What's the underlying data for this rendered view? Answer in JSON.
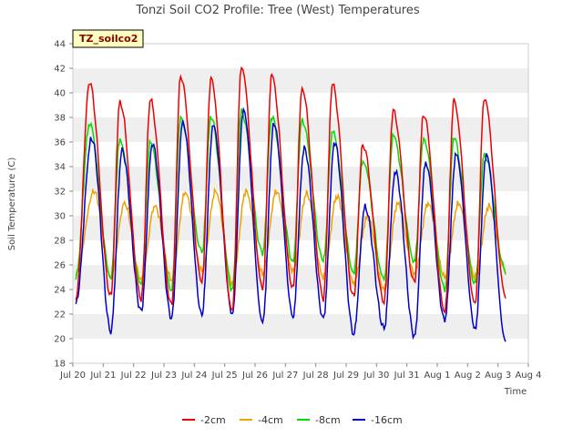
{
  "chart_data": {
    "type": "line",
    "title": "Tonzi Soil CO2 Profile: Tree (West) Temperatures",
    "xlabel": "Time",
    "ylabel": "Soil Temperature (C)",
    "tag": "TZ_soilco2",
    "ylim": [
      18,
      44
    ],
    "y_ticks": [
      18,
      20,
      22,
      24,
      26,
      28,
      30,
      32,
      34,
      36,
      38,
      40,
      42,
      44
    ],
    "x_ticks": [
      "Jul 20",
      "Jul 21",
      "Jul 22",
      "Jul 23",
      "Jul 24",
      "Jul 25",
      "Jul 26",
      "Jul 27",
      "Jul 28",
      "Jul 29",
      "Jul 30",
      "Jul 31",
      "Aug 1",
      "Aug 2",
      "Aug 3",
      "Aug 4"
    ],
    "x_range_days": [
      0,
      15
    ],
    "x_sampling": "daily peak and trough values, peaks near mid-day, troughs near early morning",
    "legend_position": "bottom-center",
    "grid": "horizontal bands",
    "series": [
      {
        "name": "-2cm",
        "color": "#ee0000",
        "start": 23.3,
        "daily_max": [
          40.8,
          39.3,
          39.4,
          41.4,
          41.1,
          42.2,
          41.4,
          40.4,
          40.7,
          35.8,
          38.5,
          38.3,
          39.3,
          39.6
        ],
        "daily_min": [
          23.5,
          23.2,
          22.8,
          24.6,
          22.3,
          24.1,
          24.1,
          23.3,
          23.4,
          23.0,
          24.6,
          22.2,
          22.8,
          23.5
        ]
      },
      {
        "name": "-4cm",
        "color": "#f0a000",
        "start": 25.3,
        "daily_max": [
          32.0,
          31.0,
          30.8,
          31.9,
          32.0,
          32.0,
          32.0,
          31.8,
          31.6,
          29.9,
          31.0,
          31.0,
          31.0,
          30.8
        ],
        "daily_min": [
          25.0,
          24.8,
          24.8,
          25.5,
          24.5,
          25.3,
          25.5,
          25.0,
          24.5,
          24.0,
          25.3,
          25.0,
          25.0,
          25.5
        ]
      },
      {
        "name": "-8cm",
        "color": "#00dd00",
        "start": 25.0,
        "daily_max": [
          37.5,
          36.2,
          36.0,
          38.0,
          38.0,
          38.5,
          38.0,
          37.8,
          36.8,
          34.5,
          36.5,
          36.3,
          36.3,
          35.0
        ],
        "daily_min": [
          25.0,
          24.3,
          24.0,
          27.0,
          24.0,
          26.9,
          26.3,
          26.3,
          25.4,
          24.8,
          26.3,
          24.0,
          24.5,
          25.5
        ]
      },
      {
        "name": "-16cm",
        "color": "#0000cc",
        "start": 22.9,
        "daily_max": [
          36.3,
          35.3,
          35.9,
          37.6,
          37.4,
          38.6,
          37.5,
          35.5,
          36.0,
          30.7,
          33.6,
          34.3,
          35.0,
          35.0
        ],
        "daily_min": [
          20.6,
          22.2,
          21.7,
          21.9,
          22.0,
          21.3,
          21.8,
          21.6,
          20.4,
          20.8,
          20.2,
          21.5,
          20.8,
          19.8
        ]
      }
    ]
  }
}
